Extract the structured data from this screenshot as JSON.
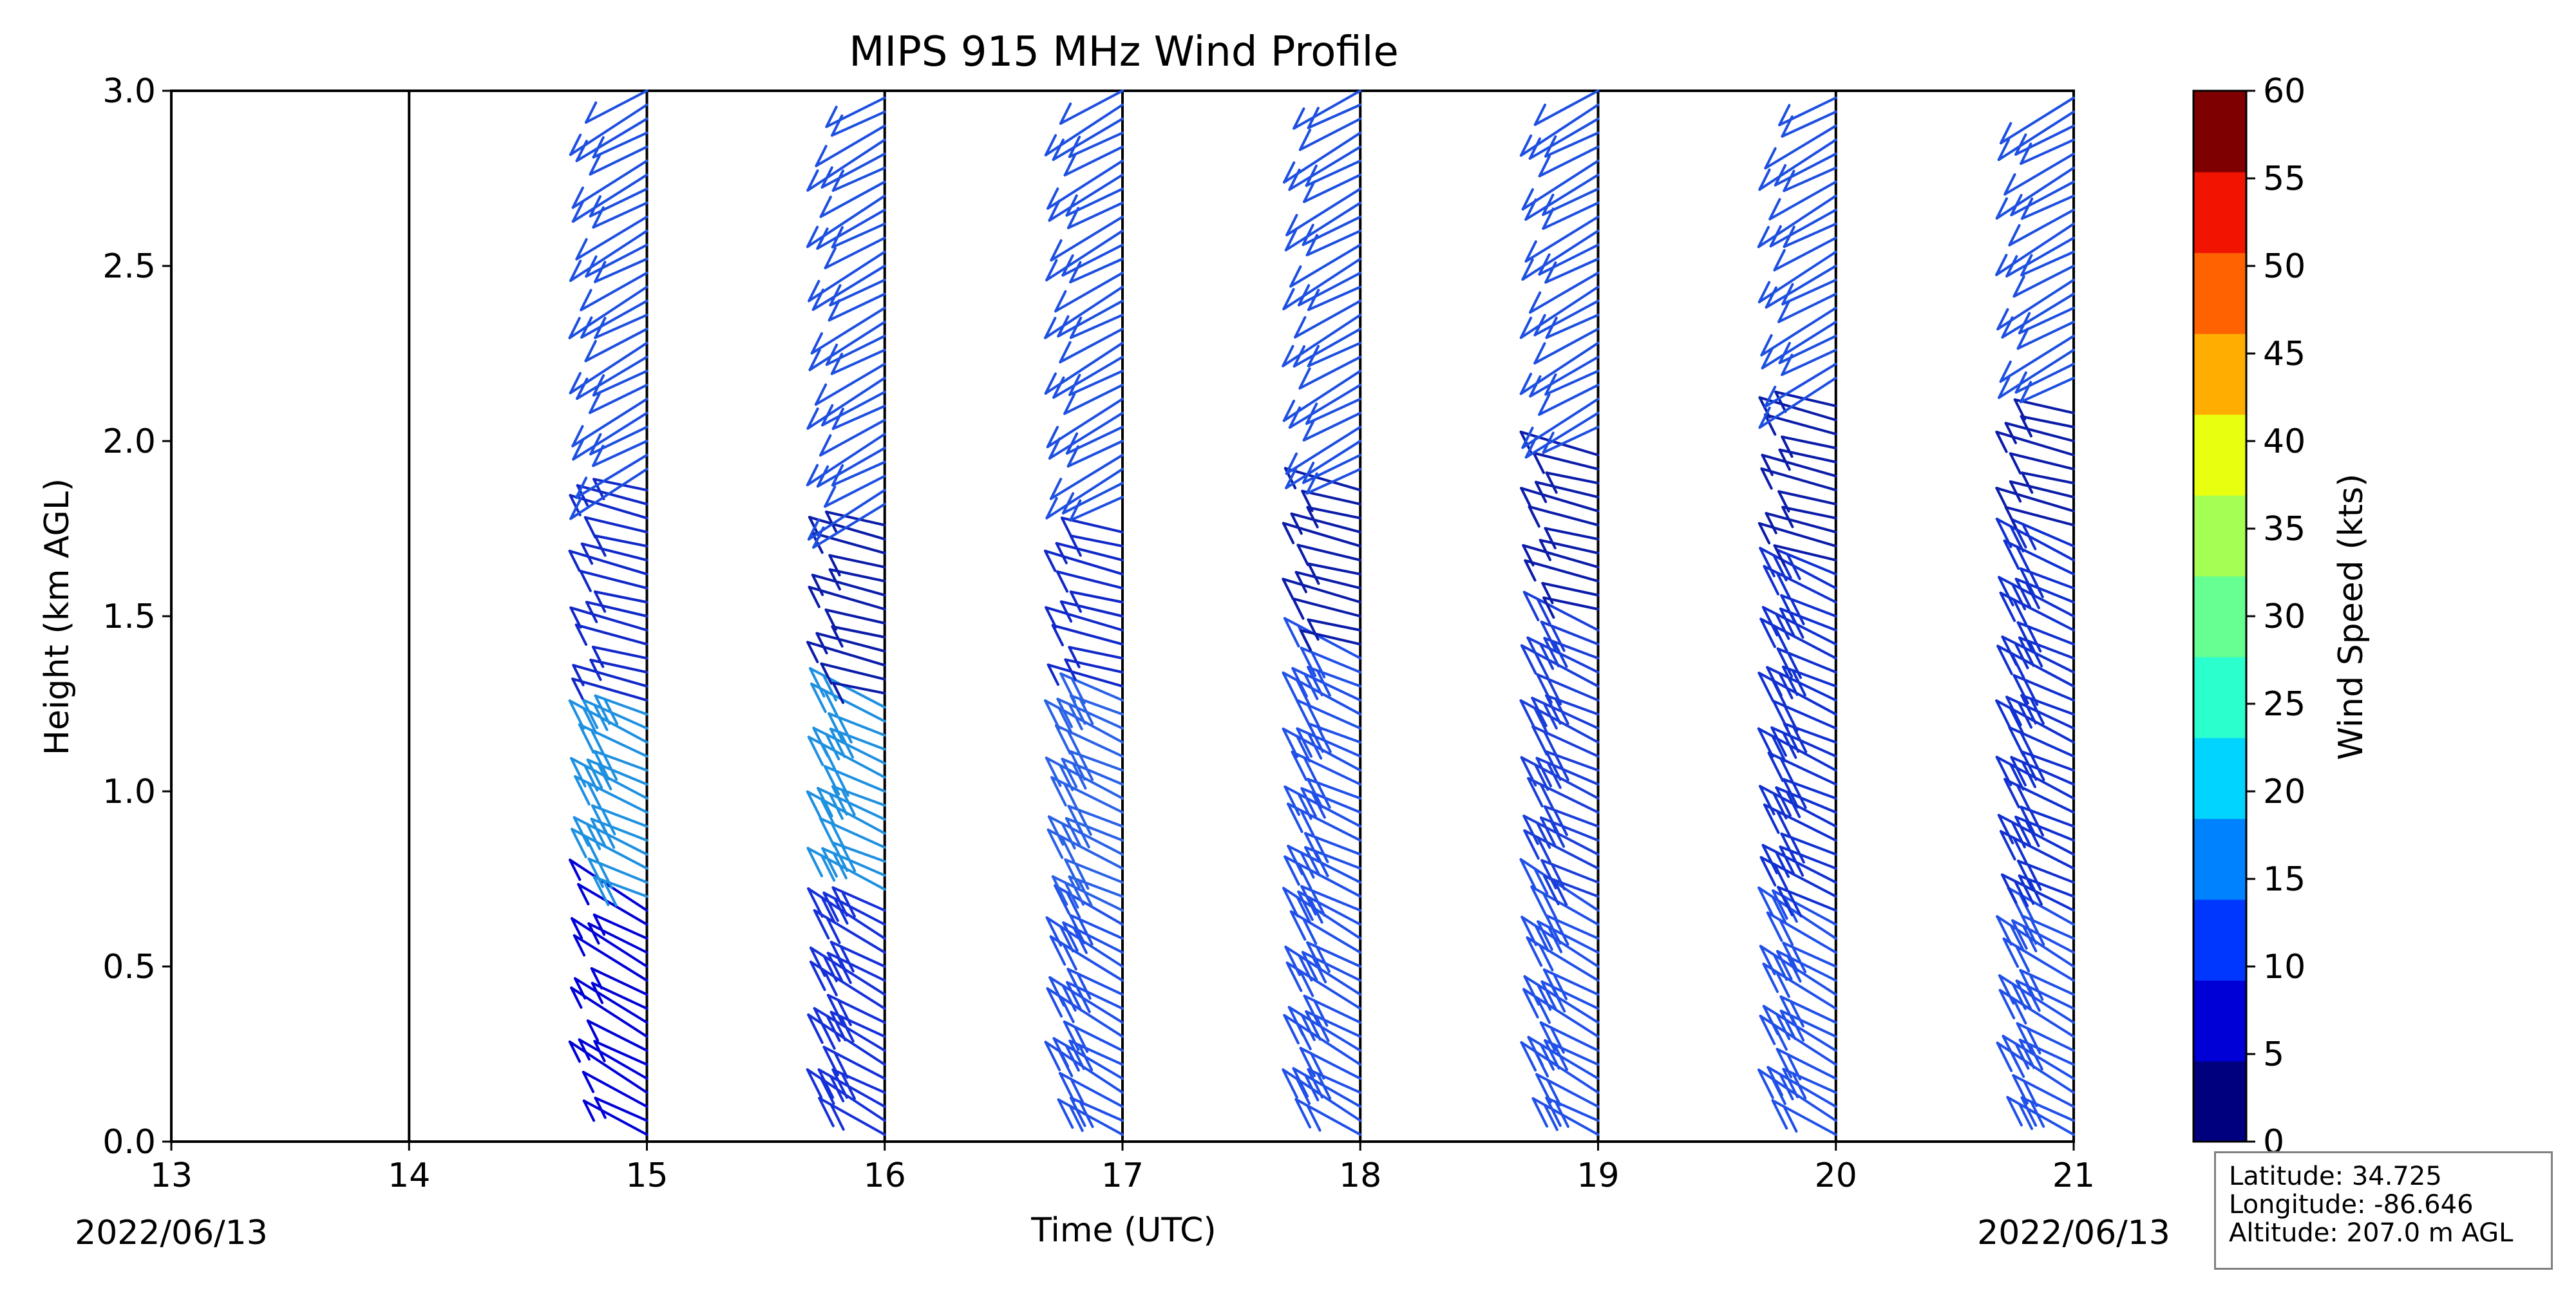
{
  "chart_data": {
    "type": "wind_barb_profile",
    "title": "MIPS 915 MHz Wind Profile",
    "xlabel": "Time (UTC)",
    "ylabel": "Height (km AGL)",
    "xlim": [
      13,
      21
    ],
    "ylim": [
      0,
      3
    ],
    "x_ticks": [
      "13",
      "14",
      "15",
      "16",
      "17",
      "18",
      "19",
      "20",
      "21"
    ],
    "y_ticks": [
      "0.0",
      "0.5",
      "1.0",
      "1.5",
      "2.0",
      "2.5",
      "3.0"
    ],
    "date_left": "2022/06/13",
    "date_right": "2022/06/13",
    "colorbar": {
      "label": "Wind Speed (kts)",
      "ticks": [
        "0",
        "5",
        "10",
        "15",
        "20",
        "25",
        "30",
        "35",
        "40",
        "45",
        "50",
        "55",
        "60"
      ],
      "colors": [
        "#00007f",
        "#0000d6",
        "#0037ff",
        "#0082ff",
        "#00d4ff",
        "#2bffcd",
        "#65ff92",
        "#a3ff53",
        "#e8ff0f",
        "#ffad00",
        "#ff6200",
        "#f11400",
        "#7f0000"
      ]
    },
    "profiles": [
      {
        "time": 15,
        "low": {
          "from": 0.02,
          "to": 0.66,
          "speed": 8,
          "color": "#0000d6"
        },
        "mid": {
          "from": 0.7,
          "to": 1.22,
          "speed": 17,
          "color": "#1e90e0"
        },
        "up": {
          "from": 1.26,
          "to": 1.86,
          "speed": 6,
          "color": "#1028c8"
        },
        "top": {
          "from": 1.92,
          "to": 3.0,
          "speed": 7,
          "color": "#1d4fe0"
        }
      },
      {
        "time": 16,
        "low": {
          "from": 0.02,
          "to": 0.66,
          "speed": 11,
          "color": "#1530d8"
        },
        "mid": {
          "from": 0.72,
          "to": 1.24,
          "speed": 15,
          "color": "#1e90e0"
        },
        "up": {
          "from": 1.28,
          "to": 1.76,
          "speed": 6,
          "color": "#0b1ca8"
        },
        "top": {
          "from": 1.82,
          "to": 3.0,
          "speed": 7,
          "color": "#1d4fe0"
        }
      },
      {
        "time": 17,
        "low": {
          "from": 0.02,
          "to": 0.62,
          "speed": 12,
          "color": "#2050e8"
        },
        "mid": {
          "from": 0.66,
          "to": 1.26,
          "speed": 13,
          "color": "#2a62e6"
        },
        "up": {
          "from": 1.3,
          "to": 1.76,
          "speed": 6,
          "color": "#1028c8"
        },
        "top": {
          "from": 1.84,
          "to": 3.0,
          "speed": 8,
          "color": "#1d4fe0"
        }
      },
      {
        "time": 18,
        "low": {
          "from": 0.02,
          "to": 0.62,
          "speed": 11,
          "color": "#2050e8"
        },
        "mid": {
          "from": 0.66,
          "to": 1.38,
          "speed": 12,
          "color": "#2050e8"
        },
        "up": {
          "from": 1.42,
          "to": 1.86,
          "speed": 5,
          "color": "#0b1ca8"
        },
        "top": {
          "from": 1.92,
          "to": 3.0,
          "speed": 7,
          "color": "#1d4fe0"
        }
      },
      {
        "time": 19,
        "low": {
          "from": 0.02,
          "to": 0.66,
          "speed": 12,
          "color": "#2050e8"
        },
        "mid": {
          "from": 0.7,
          "to": 1.46,
          "speed": 12,
          "color": "#1a3ed8"
        },
        "up": {
          "from": 1.52,
          "to": 1.98,
          "speed": 5,
          "color": "#0b1ca8"
        },
        "top": {
          "from": 2.04,
          "to": 3.0,
          "speed": 7,
          "color": "#1d4fe0"
        }
      },
      {
        "time": 20,
        "low": {
          "from": 0.02,
          "to": 0.62,
          "speed": 12,
          "color": "#2050e8"
        },
        "mid": {
          "from": 0.66,
          "to": 1.62,
          "speed": 11,
          "color": "#1030d0"
        },
        "up": {
          "from": 1.66,
          "to": 2.1,
          "speed": 5,
          "color": "#0b1ca8"
        },
        "top": {
          "from": 2.18,
          "to": 3.0,
          "speed": 8,
          "color": "#1d4fe0"
        }
      },
      {
        "time": 21,
        "low": {
          "from": 0.02,
          "to": 0.62,
          "speed": 12,
          "color": "#2050e8"
        },
        "mid": {
          "from": 0.66,
          "to": 1.72,
          "speed": 11,
          "color": "#1030d0"
        },
        "up": {
          "from": 1.76,
          "to": 2.1,
          "speed": 5,
          "color": "#0b1ca8"
        },
        "top": {
          "from": 2.18,
          "to": 3.0,
          "speed": 8,
          "color": "#1d4fe0"
        }
      }
    ]
  },
  "station": {
    "latitude": "Latitude: 34.725",
    "longitude": "Longitude: -86.646",
    "altitude": "Altitude: 207.0 m AGL"
  }
}
